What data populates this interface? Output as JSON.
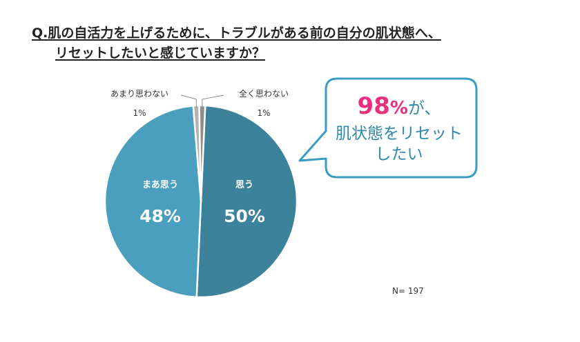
{
  "question": {
    "line1": "Q.肌の自活力を上げるために、トラブルがある前の自分の肌状態へ、",
    "line2": "リセットしたいと感じていますか？"
  },
  "sample_size": "N= 197",
  "callout": {
    "value": "98",
    "unit": "%",
    "particle": "が、",
    "line2": "肌状態をリセット",
    "line3": "したい"
  },
  "colors": {
    "slice_omou": "#3b829a",
    "slice_maa": "#4a9ebe",
    "slice_amari": "#b3b3b3",
    "slice_zenku": "#8f8f8f",
    "callout_border": "#3a9cc0",
    "callout_accent": "#e8317e"
  },
  "chart_data": {
    "type": "pie",
    "slices": [
      {
        "label": "思う",
        "value": 50,
        "display": "50%"
      },
      {
        "label": "まあ思う",
        "value": 48,
        "display": "48%"
      },
      {
        "label": "あまり思わない",
        "value": 1,
        "display": "1%"
      },
      {
        "label": "全く思わない",
        "value": 1,
        "display": "1%"
      }
    ],
    "legend": "none",
    "labels": "on-chart"
  }
}
